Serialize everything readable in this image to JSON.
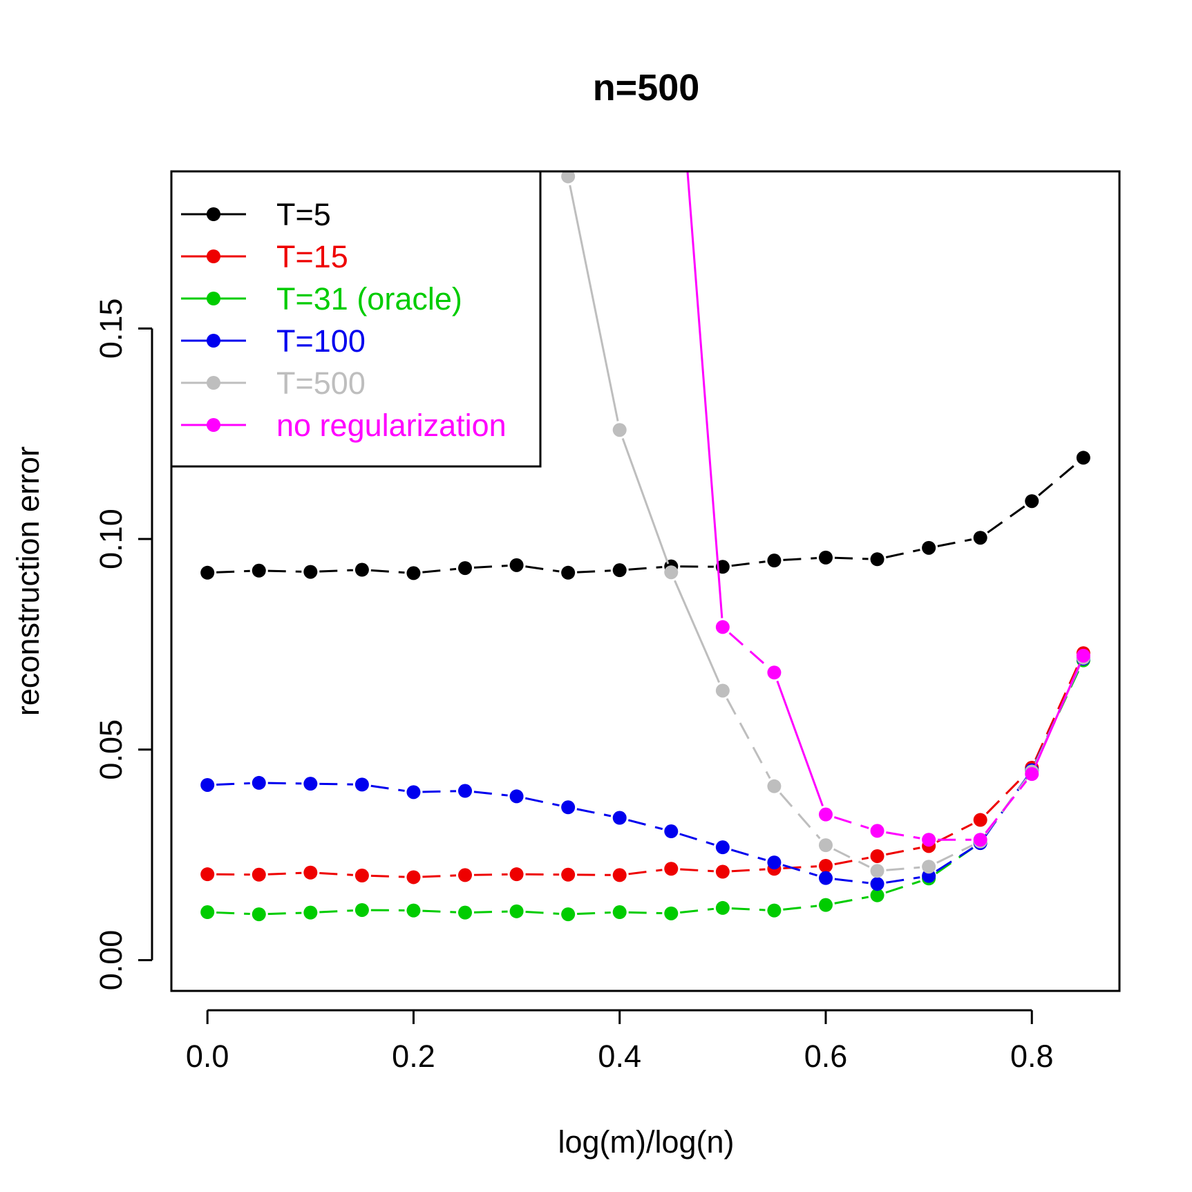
{
  "chart_data": {
    "type": "line",
    "title": "n=500",
    "xlabel": "log(m)/log(n)",
    "ylabel": "reconstruction error",
    "xlim": [
      -0.035,
      0.885
    ],
    "ylim": [
      -0.0073,
      0.1873
    ],
    "xticks": [
      0.0,
      0.2,
      0.4,
      0.6,
      0.8
    ],
    "xtick_labels": [
      "0.0",
      "0.2",
      "0.4",
      "0.6",
      "0.8"
    ],
    "yticks": [
      0.0,
      0.05,
      0.1,
      0.15
    ],
    "ytick_labels": [
      "0.00",
      "0.05",
      "0.10",
      "0.15"
    ],
    "legend_position": "top-left",
    "x": [
      0.0,
      0.05,
      0.1,
      0.15,
      0.2,
      0.25,
      0.3,
      0.35,
      0.4,
      0.45,
      0.5,
      0.55,
      0.6,
      0.65,
      0.7,
      0.75,
      0.8,
      0.85
    ],
    "series": [
      {
        "name": "T=5",
        "color": "#000000",
        "line_style": "dashed",
        "values": [
          0.092,
          0.0925,
          0.0922,
          0.0927,
          0.0919,
          0.0931,
          0.0938,
          0.092,
          0.0926,
          0.0935,
          0.0934,
          0.0949,
          0.0956,
          0.0952,
          0.0979,
          0.1003,
          0.109,
          0.1193
        ]
      },
      {
        "name": "T=15",
        "color": "#ee0000",
        "line_style": "dashed",
        "values": [
          0.0204,
          0.0203,
          0.0208,
          0.0201,
          0.0197,
          0.0202,
          0.0204,
          0.0203,
          0.0202,
          0.0217,
          0.021,
          0.0217,
          0.0224,
          0.0247,
          0.0271,
          0.0333,
          0.0457,
          0.0729
        ]
      },
      {
        "name": "T=31 (oracle)",
        "color": "#00cc00",
        "line_style": "dashed",
        "values": [
          0.0114,
          0.0109,
          0.0113,
          0.0119,
          0.0118,
          0.0113,
          0.0116,
          0.0109,
          0.0114,
          0.0111,
          0.0124,
          0.0118,
          0.0131,
          0.0154,
          0.0194,
          0.0279,
          0.045,
          0.0712
        ]
      },
      {
        "name": "T=100",
        "color": "#0000ee",
        "line_style": "dashed",
        "values": [
          0.0416,
          0.0421,
          0.0419,
          0.0417,
          0.0399,
          0.0402,
          0.0389,
          0.0363,
          0.0338,
          0.0306,
          0.0268,
          0.0232,
          0.0195,
          0.0181,
          0.02,
          0.0278,
          0.0451,
          0.0716
        ]
      },
      {
        "name": "T=500",
        "color": "#bebebe",
        "line_style": "solid-dashed",
        "values": [
          null,
          null,
          null,
          null,
          null,
          null,
          null,
          0.1861,
          0.1259,
          0.0921,
          0.064,
          0.0413,
          0.0273,
          0.0212,
          0.0222,
          0.0282,
          0.0448,
          0.0718
        ]
      },
      {
        "name": "no regularization",
        "color": "#ff00ff",
        "line_style": "solid-dashed",
        "offscale_start": [
          0.465,
          0.19
        ],
        "values": [
          null,
          null,
          null,
          null,
          null,
          null,
          null,
          null,
          null,
          null,
          0.0791,
          0.0683,
          0.0346,
          0.0307,
          0.0286,
          0.0286,
          0.0442,
          0.0723
        ]
      }
    ]
  }
}
